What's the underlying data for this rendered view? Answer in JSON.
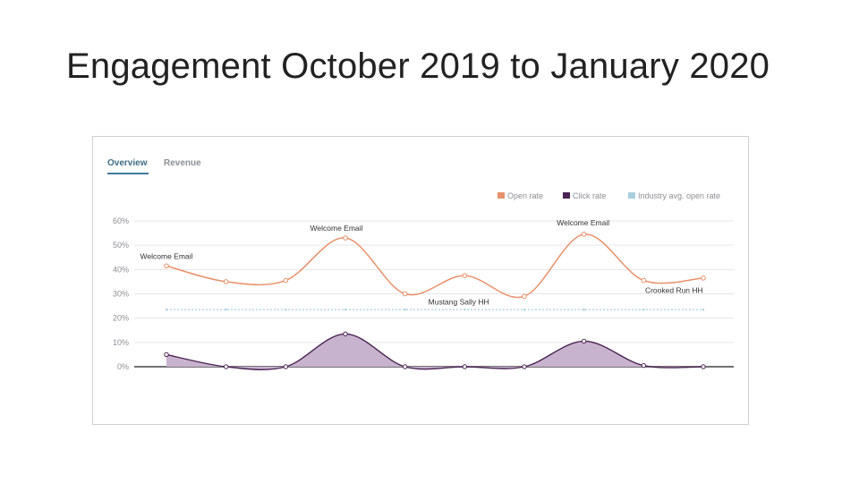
{
  "slide": {
    "title": "Engagement October 2019 to January 2020"
  },
  "tabs": [
    {
      "label": "Overview"
    },
    {
      "label": "Revenue"
    }
  ],
  "colors": {
    "open_rate": "#e8916a",
    "click_rate": "#4a2453",
    "click_fill": "#c8b3cf",
    "industry_avg": "#a9cfe1",
    "active_tab": "#3d6d86",
    "grid": "#e6e6e6",
    "axis_text": "#8b8f94"
  },
  "chart_data": {
    "type": "line",
    "title": "",
    "xlabel": "",
    "ylabel": "",
    "ylim": [
      0,
      60
    ],
    "y_ticks": [
      "60%",
      "50%",
      "40%",
      "30%",
      "20%",
      "10%",
      "0%"
    ],
    "x": [
      1,
      2,
      3,
      4,
      5,
      6,
      7,
      8,
      9,
      10
    ],
    "grid": true,
    "legend_position": "top-right",
    "series": [
      {
        "name": "Open rate",
        "style": "line",
        "values": [
          41.5,
          35,
          35.5,
          53,
          30,
          37.5,
          29,
          54.5,
          35.5,
          36.5
        ]
      },
      {
        "name": "Click rate",
        "style": "area",
        "values": [
          5,
          0,
          0,
          13.5,
          0,
          0,
          0,
          10.5,
          0.5,
          0
        ]
      },
      {
        "name": "Industry avg. open rate",
        "style": "dashed",
        "values": [
          23.5,
          23.5,
          23.5,
          23.5,
          23.5,
          23.5,
          23.5,
          23.5,
          23.5,
          23.5
        ]
      }
    ],
    "annotations": [
      {
        "text": "Welcome Email",
        "point": 1
      },
      {
        "text": "Welcome Email",
        "point": 4
      },
      {
        "text": "Mustang Sally HH",
        "point": 5
      },
      {
        "text": "Welcome Email",
        "point": 8
      },
      {
        "text": "Crooked Run HH",
        "point": 9
      }
    ]
  }
}
